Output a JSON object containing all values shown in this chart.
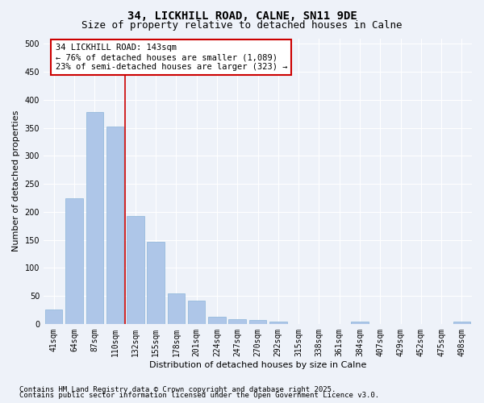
{
  "title_line1": "34, LICKHILL ROAD, CALNE, SN11 9DE",
  "title_line2": "Size of property relative to detached houses in Calne",
  "xlabel": "Distribution of detached houses by size in Calne",
  "ylabel": "Number of detached properties",
  "categories": [
    "41sqm",
    "64sqm",
    "87sqm",
    "110sqm",
    "132sqm",
    "155sqm",
    "178sqm",
    "201sqm",
    "224sqm",
    "247sqm",
    "270sqm",
    "292sqm",
    "315sqm",
    "338sqm",
    "361sqm",
    "384sqm",
    "407sqm",
    "429sqm",
    "452sqm",
    "475sqm",
    "498sqm"
  ],
  "values": [
    25,
    224,
    378,
    352,
    193,
    147,
    55,
    41,
    12,
    9,
    7,
    4,
    0,
    0,
    0,
    4,
    0,
    0,
    0,
    0,
    4
  ],
  "bar_color": "#aec6e8",
  "bar_edgecolor": "#8ab4d8",
  "vline_x": 3.5,
  "vline_color": "#cc0000",
  "ylim": [
    0,
    510
  ],
  "yticks": [
    0,
    50,
    100,
    150,
    200,
    250,
    300,
    350,
    400,
    450,
    500
  ],
  "annotation_box_text": "34 LICKHILL ROAD: 143sqm\n← 76% of detached houses are smaller (1,089)\n23% of semi-detached houses are larger (323) →",
  "footer_line1": "Contains HM Land Registry data © Crown copyright and database right 2025.",
  "footer_line2": "Contains public sector information licensed under the Open Government Licence v3.0.",
  "background_color": "#eef2f9",
  "grid_color": "#ffffff",
  "title_fontsize": 10,
  "subtitle_fontsize": 9,
  "axis_label_fontsize": 8,
  "tick_fontsize": 7,
  "annotation_fontsize": 7.5,
  "footer_fontsize": 6.5
}
